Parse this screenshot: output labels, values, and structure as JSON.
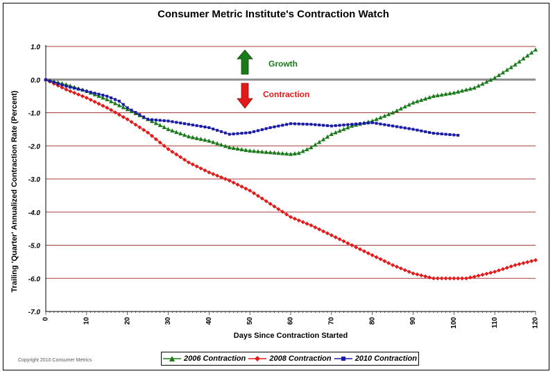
{
  "chart_data": {
    "type": "line",
    "title": "Consumer Metric Institute's Contraction Watch",
    "xlabel": "Days Since Contraction Started",
    "ylabel": "Trailing 'Quarter' Annualized Contraction Rate (Percent)",
    "xlim": [
      0,
      120
    ],
    "ylim": [
      -7.0,
      1.0
    ],
    "x_ticks": [
      0,
      10,
      20,
      30,
      40,
      50,
      60,
      70,
      80,
      90,
      100,
      110,
      120
    ],
    "x_tick_labels": [
      "0",
      "10",
      "20",
      "30",
      "40",
      "50",
      "60",
      "70",
      "80",
      "90",
      "100",
      "110",
      "120"
    ],
    "y_ticks": [
      1.0,
      0.0,
      -1.0,
      -2.0,
      -3.0,
      -4.0,
      -5.0,
      -6.0,
      -7.0
    ],
    "y_tick_labels": [
      "1.0",
      "0.0",
      "-1.0",
      "-2.0",
      "-3.0",
      "-4.0",
      "-5.0",
      "-6.0",
      "-7.0"
    ],
    "grid": "horizontal",
    "legend_position": "bottom",
    "annotations": [
      {
        "text": "Growth",
        "color": "#1a7a1a"
      },
      {
        "text": "Contraction",
        "color": "#e31a1a"
      }
    ],
    "copyright": "Copyright 2010 Consumer Metrics",
    "series": [
      {
        "name": "2006 Contraction",
        "color": "#1a7a1a",
        "marker": "triangle",
        "x": [
          0,
          5,
          10,
          15,
          20,
          25,
          30,
          35,
          40,
          45,
          50,
          55,
          60,
          62,
          65,
          70,
          75,
          80,
          85,
          90,
          95,
          100,
          105,
          110,
          115,
          120
        ],
        "y": [
          0.0,
          -0.15,
          -0.35,
          -0.6,
          -0.9,
          -1.2,
          -1.5,
          -1.72,
          -1.85,
          -2.05,
          -2.15,
          -2.2,
          -2.25,
          -2.22,
          -2.05,
          -1.65,
          -1.4,
          -1.25,
          -1.0,
          -0.7,
          -0.5,
          -0.4,
          -0.25,
          0.05,
          0.45,
          0.9
        ]
      },
      {
        "name": "2008 Contraction",
        "color": "#e31a1a",
        "marker": "diamond",
        "x": [
          0,
          5,
          10,
          15,
          20,
          25,
          30,
          35,
          40,
          45,
          50,
          55,
          60,
          65,
          70,
          75,
          80,
          85,
          90,
          95,
          100,
          103,
          105,
          110,
          115,
          120
        ],
        "y": [
          0.0,
          -0.3,
          -0.55,
          -0.85,
          -1.2,
          -1.6,
          -2.1,
          -2.5,
          -2.8,
          -3.05,
          -3.35,
          -3.75,
          -4.15,
          -4.4,
          -4.7,
          -5.0,
          -5.3,
          -5.6,
          -5.85,
          -6.0,
          -6.0,
          -6.0,
          -5.95,
          -5.8,
          -5.6,
          -5.45
        ]
      },
      {
        "name": "2010 Contraction",
        "color": "#1a1aa8",
        "marker": "square",
        "x": [
          0,
          5,
          10,
          15,
          18,
          20,
          25,
          30,
          35,
          40,
          45,
          50,
          55,
          60,
          65,
          70,
          75,
          80,
          85,
          90,
          95,
          101
        ],
        "y": [
          0.0,
          -0.2,
          -0.35,
          -0.5,
          -0.65,
          -0.85,
          -1.2,
          -1.25,
          -1.35,
          -1.45,
          -1.65,
          -1.6,
          -1.45,
          -1.33,
          -1.35,
          -1.4,
          -1.35,
          -1.3,
          -1.4,
          -1.5,
          -1.62,
          -1.68
        ]
      }
    ]
  }
}
